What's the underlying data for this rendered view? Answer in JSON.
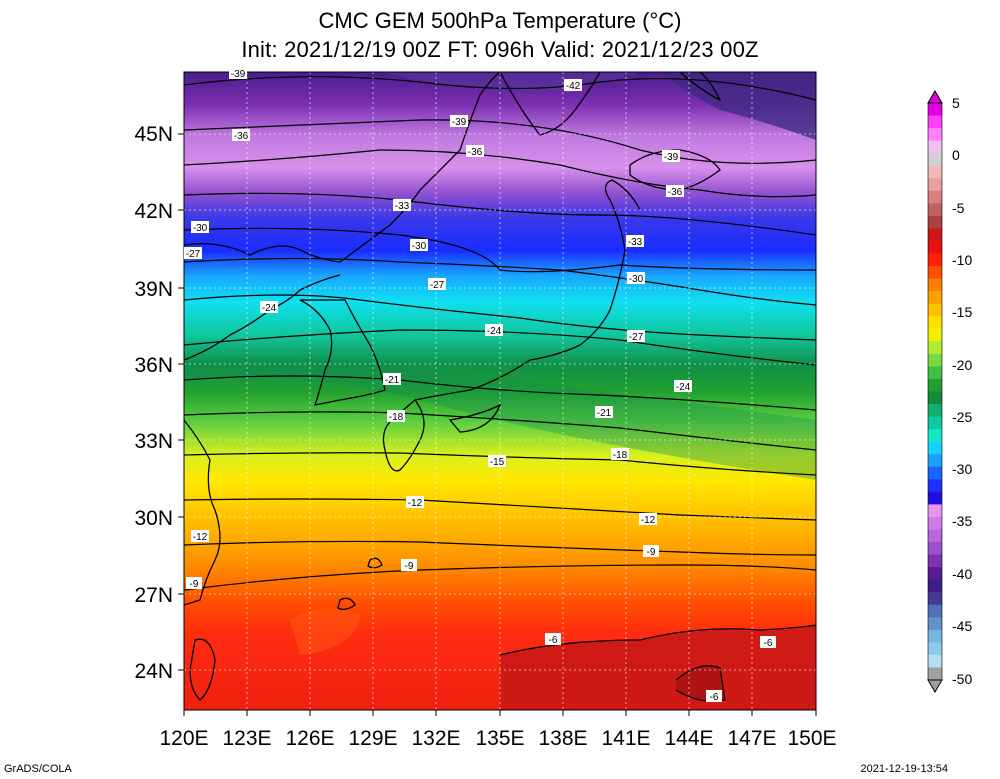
{
  "title": "CMC GEM 500hPa Temperature (°C)",
  "subtitle": "Init: 2021/12/19 00Z  FT: 096h  Valid: 2021/12/23 00Z",
  "lon_labels": [
    "120E",
    "123E",
    "126E",
    "129E",
    "132E",
    "135E",
    "138E",
    "141E",
    "144E",
    "147E",
    "150E"
  ],
  "lat_labels": [
    "45N",
    "42N",
    "39N",
    "36N",
    "33N",
    "30N",
    "27N",
    "24N"
  ],
  "colorbar_labels": [
    "5",
    "0",
    "-5",
    "-10",
    "-15",
    "-20",
    "-25",
    "-30",
    "-35",
    "-40",
    "-45",
    "-50"
  ],
  "contour_labels": [
    "-39",
    "-42",
    "-39",
    "-36",
    "-36",
    "-39",
    "-36",
    "-33",
    "-30",
    "-33",
    "-30",
    "-27",
    "-30",
    "-27",
    "-24",
    "-24",
    "-27",
    "-21",
    "-24",
    "-18",
    "-21",
    "-18",
    "-15",
    "-12",
    "-12",
    "-12",
    "-9",
    "-9",
    "-9",
    "-6",
    "-6",
    "-6"
  ],
  "colors": {
    "scale": [
      "#a0a0a0",
      "#b8dcf0",
      "#8ccce8",
      "#78b4e0",
      "#6490cc",
      "#5470b8",
      "#443c90",
      "#3c2088",
      "#5a1a98",
      "#7c34b4",
      "#9c50cc",
      "#b868dc",
      "#d07ce8",
      "#e894f0",
      "#2010e0",
      "#2030ff",
      "#1c64ff",
      "#1ca0ff",
      "#18d0ff",
      "#10e8c8",
      "#10c8a0",
      "#10b070",
      "#108c3c",
      "#20a030",
      "#40c040",
      "#78d840",
      "#b0ec30",
      "#f0f000",
      "#ffe000",
      "#ffc000",
      "#ffa000",
      "#ff8000",
      "#ff5000",
      "#ff2000",
      "#e81010",
      "#c81818",
      "#b04040",
      "#c06060",
      "#d88080",
      "#e8a0a0",
      "#f0b8b8",
      "#d0d0d0",
      "#f0c0f0",
      "#ff80ff",
      "#ff40ff",
      "#e000e0"
    ]
  },
  "footer": {
    "left": "GrADS/COLA",
    "right": "2021-12-19-13:54"
  }
}
